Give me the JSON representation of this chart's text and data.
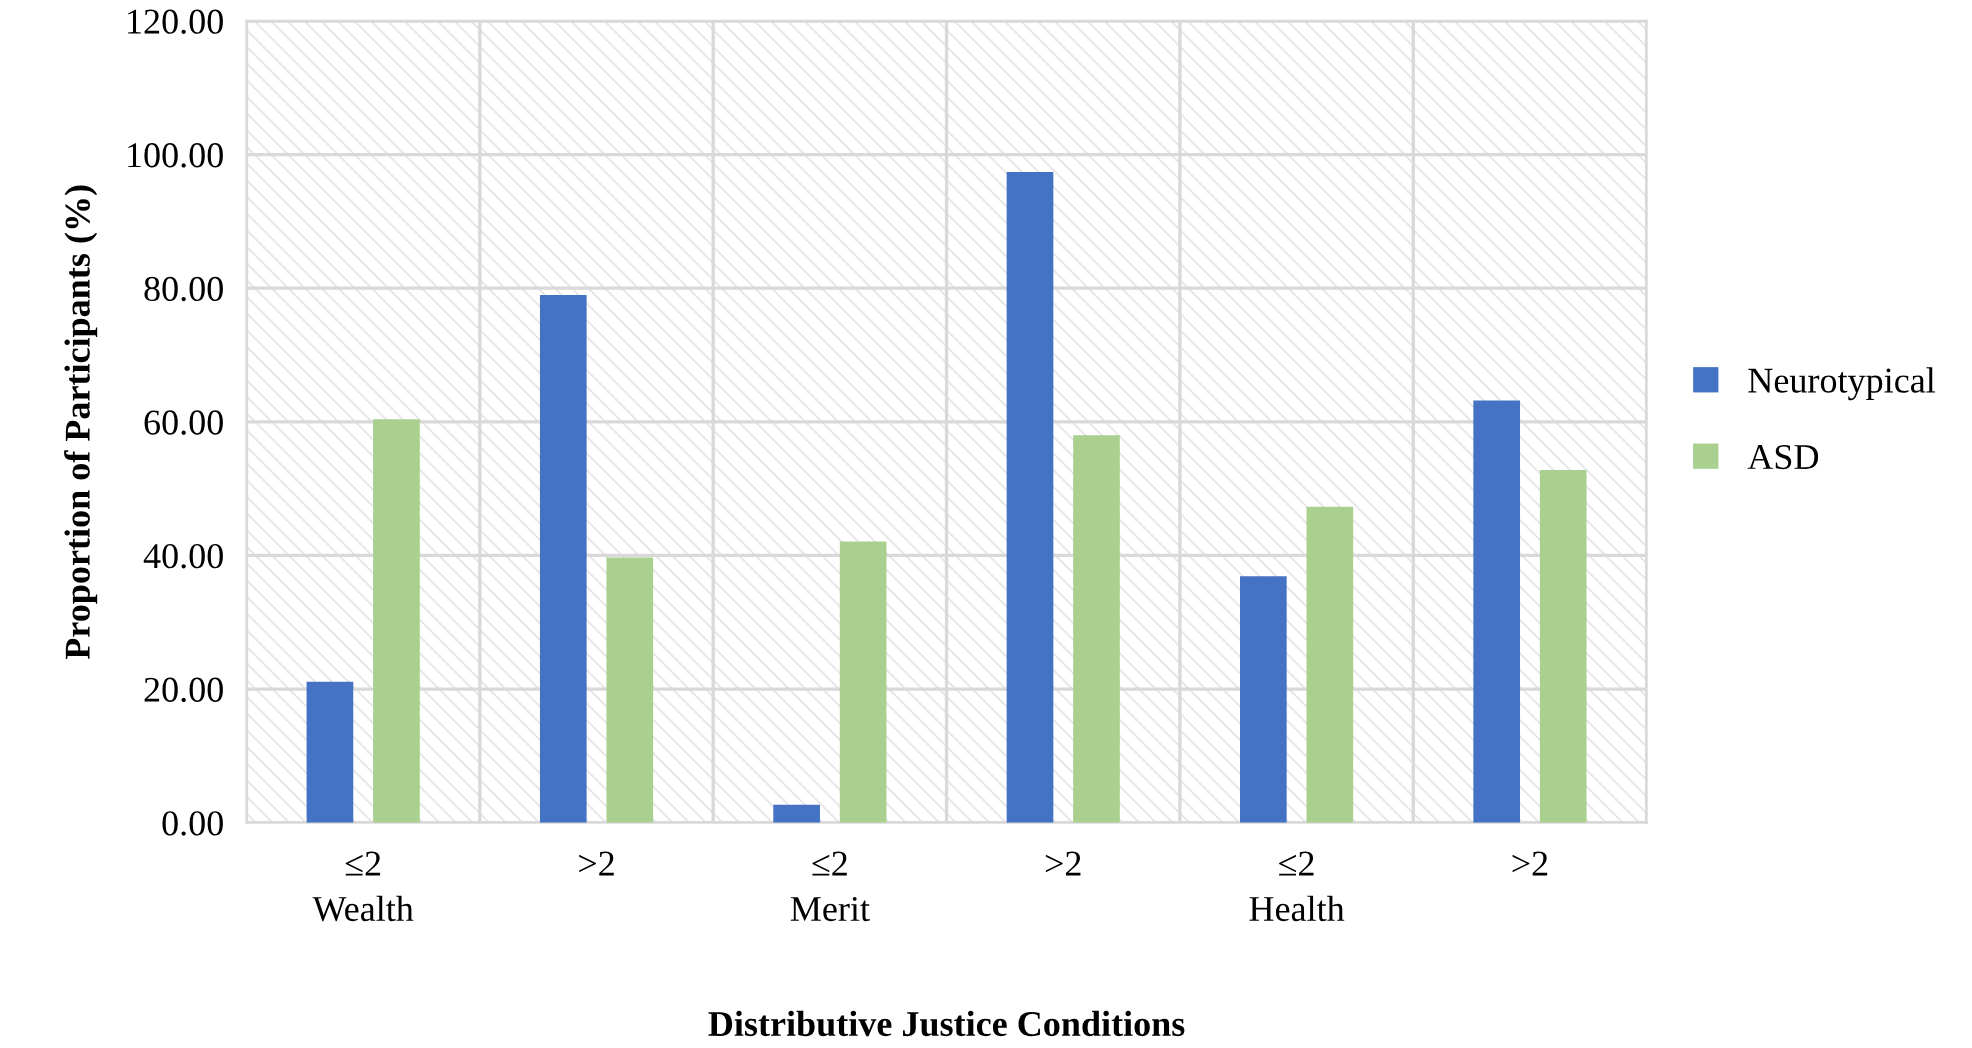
{
  "chart_data": {
    "type": "bar",
    "xlabel": "Distributive Justice Conditions",
    "ylabel": "Proportion of Participants (%)",
    "categories": [
      "≤2\nWealth",
      ">2",
      "≤2\nMerit",
      ">2",
      "≤2\nHealth",
      ">2"
    ],
    "series": [
      {
        "name": "Neurotypical",
        "color": "#4472c4",
        "values": [
          21.1,
          79.0,
          2.7,
          97.4,
          36.9,
          63.2
        ]
      },
      {
        "name": "ASD",
        "color": "#a9d08e",
        "values": [
          60.4,
          39.7,
          42.1,
          58.0,
          47.3,
          52.8
        ]
      }
    ],
    "ylim": [
      0,
      120
    ],
    "yticks": [
      {
        "value": 0,
        "label": "0.00"
      },
      {
        "value": 20,
        "label": "20.00"
      },
      {
        "value": 40,
        "label": "40.00"
      },
      {
        "value": 60,
        "label": "60.00"
      },
      {
        "value": 80,
        "label": "80.00"
      },
      {
        "value": 100,
        "label": "100.00"
      },
      {
        "value": 120,
        "label": "120.00"
      }
    ],
    "grid": true,
    "legend": "right"
  }
}
